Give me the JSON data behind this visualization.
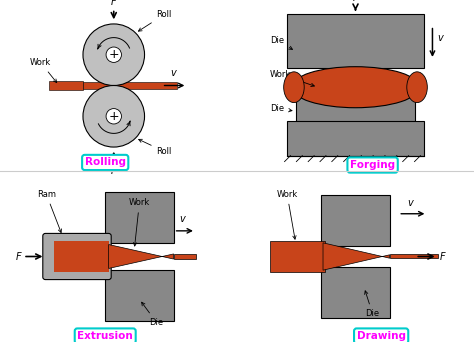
{
  "bg_color": "#ffffff",
  "roll_color": "#c0c0c0",
  "work_color": "#c8441a",
  "die_color": "#888888",
  "ram_color": "#aaaaaa",
  "label_color": "#ff00ff",
  "border_color": "#00cccc",
  "labels": {
    "rolling": "Rolling",
    "forging": "Forging",
    "extrusion": "Extrusion",
    "drawing": "Drawing"
  }
}
